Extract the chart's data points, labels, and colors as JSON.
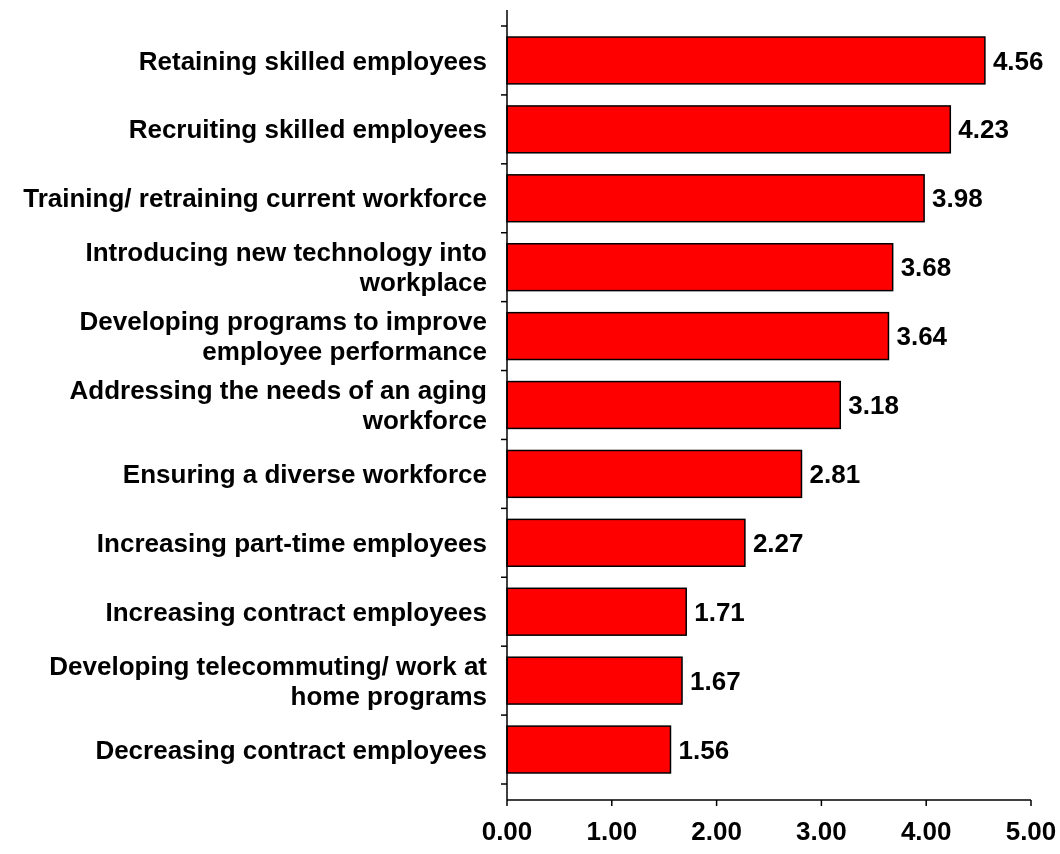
{
  "chart_data": {
    "type": "bar",
    "orientation": "horizontal",
    "categories": [
      "Retaining skilled employees",
      "Recruiting skilled employees",
      "Training/ retraining current workforce",
      "Introducing new technology into workplace",
      "Developing programs to improve employee performance",
      "Addressing the needs of an aging workforce",
      "Ensuring a diverse workforce",
      "Increasing part-time employees",
      "Increasing contract employees",
      "Developing telecommuting/ work at home programs",
      "Decreasing contract employees"
    ],
    "values": [
      4.56,
      4.23,
      3.98,
      3.68,
      3.64,
      3.18,
      2.81,
      2.27,
      1.71,
      1.67,
      1.56
    ],
    "color": "#ff0000",
    "data_labels": true,
    "xlim": [
      0,
      5
    ],
    "xticks": [
      {
        "value": 0,
        "label": "0.00"
      },
      {
        "value": 1,
        "label": "1.00"
      },
      {
        "value": 2,
        "label": "2.00"
      },
      {
        "value": 3,
        "label": "3.00"
      },
      {
        "value": 4,
        "label": "4.00"
      },
      {
        "value": 5,
        "label": "5.00"
      }
    ],
    "grid": false
  }
}
